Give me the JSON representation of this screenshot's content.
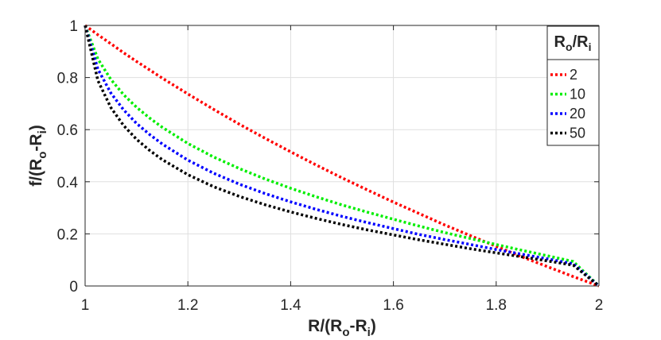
{
  "chart_data": {
    "type": "line",
    "title": "",
    "xlabel": {
      "main": "R/(R",
      "sub1": "o",
      "mid": "-R",
      "sub2": "i",
      "end": ")"
    },
    "ylabel": {
      "main": "f/(R",
      "sub1": "o",
      "mid": "-R",
      "sub2": "i",
      "end": ")"
    },
    "xlim": [
      1,
      2
    ],
    "ylim": [
      0,
      1
    ],
    "xticks": [
      1,
      1.2,
      1.4,
      1.6,
      1.8,
      2
    ],
    "xtick_labels": [
      "1",
      "1.2",
      "1.4",
      "1.6",
      "1.8",
      "2"
    ],
    "yticks": [
      0,
      0.2,
      0.4,
      0.6,
      0.8,
      1
    ],
    "ytick_labels": [
      "0",
      "0.2",
      "0.4",
      "0.6",
      "0.8",
      "1"
    ],
    "grid": true,
    "line_style": "dotted",
    "legend": {
      "placement": "top-right",
      "title": {
        "main": "R",
        "sub1": "o",
        "mid": "/R",
        "sub2": "i"
      }
    },
    "x": [
      1.0,
      1.025,
      1.05,
      1.075,
      1.1,
      1.125,
      1.15,
      1.2,
      1.25,
      1.3,
      1.35,
      1.4,
      1.45,
      1.5,
      1.55,
      1.6,
      1.65,
      1.7,
      1.75,
      1.8,
      1.85,
      1.9,
      1.95,
      2.0
    ],
    "series": [
      {
        "name": "2",
        "color": "#ff0000",
        "values": [
          1.0,
          0.964,
          0.93,
          0.895,
          0.862,
          0.83,
          0.798,
          0.737,
          0.678,
          0.621,
          0.567,
          0.515,
          0.464,
          0.415,
          0.368,
          0.322,
          0.278,
          0.234,
          0.193,
          0.152,
          0.112,
          0.074,
          0.036,
          0.0
        ]
      },
      {
        "name": "10",
        "color": "#00ee00",
        "values": [
          1.0,
          0.871,
          0.793,
          0.734,
          0.686,
          0.645,
          0.609,
          0.547,
          0.495,
          0.451,
          0.411,
          0.375,
          0.342,
          0.311,
          0.283,
          0.256,
          0.23,
          0.205,
          0.182,
          0.159,
          0.137,
          0.116,
          0.094,
          0.0
        ]
      },
      {
        "name": "20",
        "color": "#0000ff",
        "values": [
          1.0,
          0.832,
          0.741,
          0.676,
          0.624,
          0.582,
          0.545,
          0.483,
          0.433,
          0.391,
          0.355,
          0.323,
          0.294,
          0.267,
          0.243,
          0.22,
          0.198,
          0.178,
          0.159,
          0.14,
          0.122,
          0.104,
          0.085,
          0.0
        ]
      },
      {
        "name": "50",
        "color": "#000000",
        "values": [
          1.0,
          0.788,
          0.685,
          0.616,
          0.563,
          0.521,
          0.485,
          0.427,
          0.381,
          0.344,
          0.312,
          0.284,
          0.259,
          0.236,
          0.215,
          0.196,
          0.177,
          0.16,
          0.143,
          0.127,
          0.112,
          0.096,
          0.08,
          0.0
        ]
      }
    ]
  }
}
